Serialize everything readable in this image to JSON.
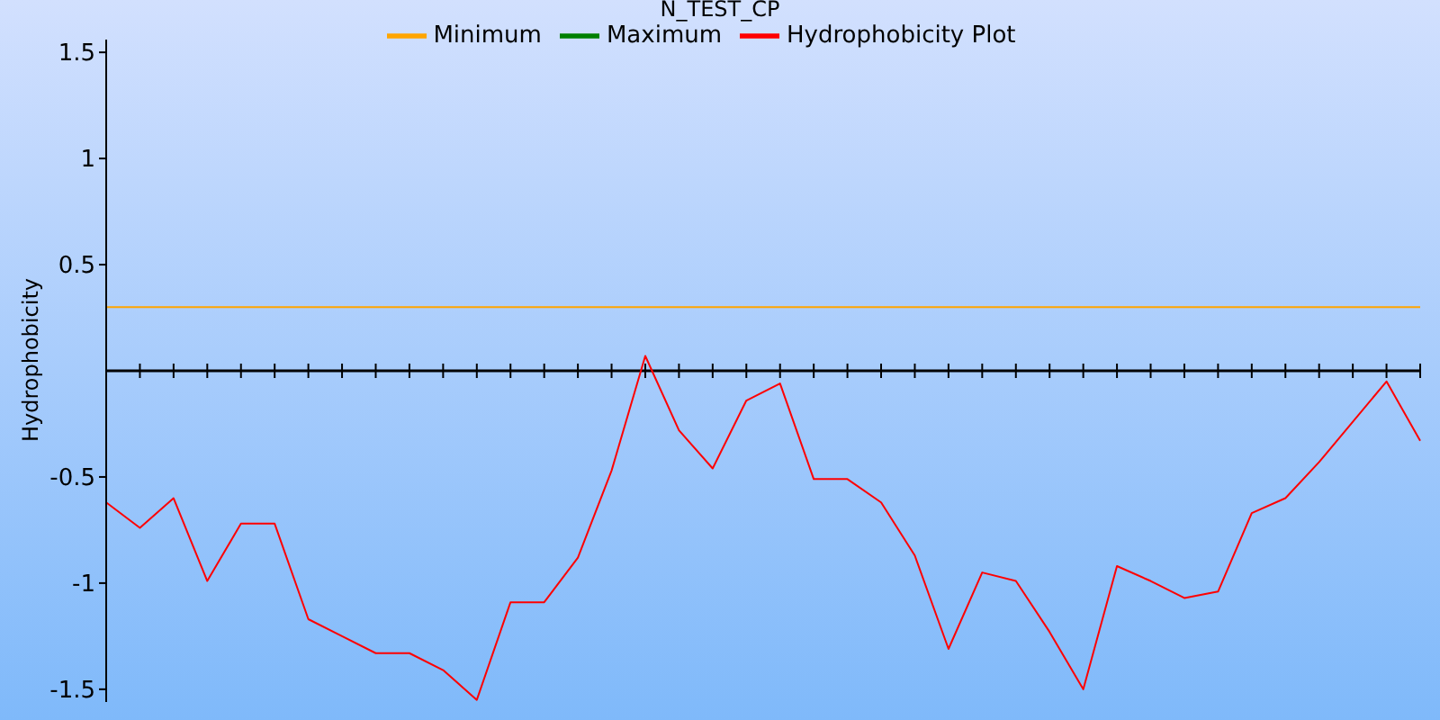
{
  "chart_data": {
    "type": "line",
    "title": "N_TEST_CP",
    "ylabel": "Hydrophobicity",
    "categories": [
      null,
      null,
      null,
      null,
      null,
      null,
      null,
      null,
      null,
      null,
      null,
      null,
      null,
      null,
      null,
      null,
      null,
      null,
      null,
      null,
      null,
      null,
      null,
      null,
      null,
      null,
      null,
      null,
      null,
      null,
      null,
      null,
      null,
      null,
      null,
      null,
      null,
      null,
      null,
      null
    ],
    "series": [
      {
        "name": "Minimum",
        "color": "#ffa500",
        "values": [
          0.3,
          0.3,
          0.3,
          0.3,
          0.3,
          0.3,
          0.3,
          0.3,
          0.3,
          0.3,
          0.3,
          0.3,
          0.3,
          0.3,
          0.3,
          0.3,
          0.3,
          0.3,
          0.3,
          0.3,
          0.3,
          0.3,
          0.3,
          0.3,
          0.3,
          0.3,
          0.3,
          0.3,
          0.3,
          0.3,
          0.3,
          0.3,
          0.3,
          0.3,
          0.3,
          0.3,
          0.3,
          0.3,
          0.3,
          0.3
        ]
      },
      {
        "name": "Maximum",
        "color": "#008000",
        "values": [
          null,
          null,
          null,
          null,
          null,
          null,
          null,
          null,
          null,
          null,
          null,
          null,
          null,
          null,
          null,
          null,
          null,
          null,
          null,
          null,
          null,
          null,
          null,
          null,
          null,
          null,
          null,
          null,
          null,
          null,
          null,
          null,
          null,
          null,
          null,
          null,
          null,
          null,
          null,
          null
        ]
      },
      {
        "name": "Hydrophobicity Plot",
        "color": "#ff0000",
        "values": [
          -0.62,
          -0.74,
          -0.6,
          -0.99,
          -0.72,
          -0.72,
          -1.17,
          -1.25,
          -1.33,
          -1.33,
          -1.41,
          -1.55,
          -1.09,
          -1.09,
          -0.88,
          -0.47,
          0.07,
          -0.28,
          -0.46,
          -0.14,
          -0.06,
          -0.51,
          -0.51,
          -0.62,
          -0.87,
          -1.31,
          -0.95,
          -0.99,
          -1.23,
          -1.5,
          -0.92,
          -0.99,
          -1.07,
          -1.04,
          -0.67,
          -0.6,
          -0.43,
          -0.24,
          -0.05,
          -0.33
        ]
      }
    ],
    "ylim": [
      -1.56,
      1.56
    ],
    "yticks": [
      -1.5,
      -1,
      -0.5,
      0.5,
      1,
      1.5
    ],
    "tick_labels": "y",
    "legend": "top",
    "marker": "none",
    "line_style": "solid",
    "grid": false,
    "ref_lines": [
      {
        "axis": "y",
        "value": 0,
        "color": "#000000"
      }
    ]
  }
}
